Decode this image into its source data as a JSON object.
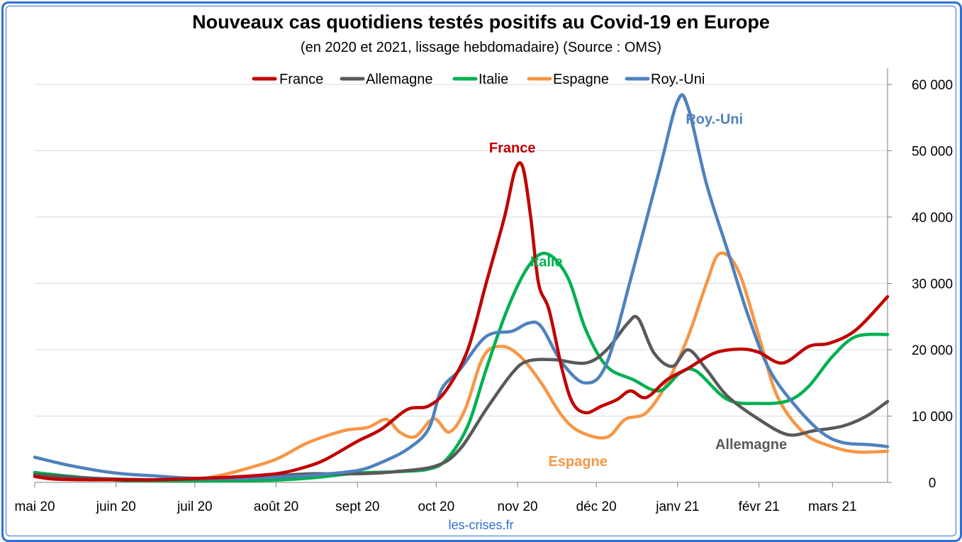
{
  "header": {
    "title": "Nouveaux cas quotidiens testés positifs au Covid-19 en Europe",
    "subtitle": "(en 2020 et 2021, lissage hebdomadaire) (Source : OMS)"
  },
  "footer": {
    "source": "les-crises.fr"
  },
  "chart_data": {
    "type": "line",
    "title": "Nouveaux cas quotidiens testés positifs au Covid-19 en Europe",
    "subtitle": "(en 2020 et 2021, lissage hebdomadaire) (Source : OMS)",
    "x_type": "date",
    "xlim": [
      "2020-05-01",
      "2021-03-22"
    ],
    "ylim": [
      0,
      60000
    ],
    "y_axis_side": "right",
    "grid": true,
    "legend_position": "top",
    "x_ticks": [
      {
        "date": "2020-05-01",
        "label": "mai 20"
      },
      {
        "date": "2020-06-01",
        "label": "juin 20"
      },
      {
        "date": "2020-07-01",
        "label": "juil 20"
      },
      {
        "date": "2020-08-01",
        "label": "août 20"
      },
      {
        "date": "2020-09-01",
        "label": "sept 20"
      },
      {
        "date": "2020-10-01",
        "label": "oct 20"
      },
      {
        "date": "2020-11-01",
        "label": "nov 20"
      },
      {
        "date": "2020-12-01",
        "label": "déc 20"
      },
      {
        "date": "2021-01-01",
        "label": "janv 21"
      },
      {
        "date": "2021-02-01",
        "label": "févr 21"
      },
      {
        "date": "2021-03-01",
        "label": "mars 21"
      }
    ],
    "y_ticks": [
      {
        "value": 0,
        "label": "0"
      },
      {
        "value": 10000,
        "label": "10 000"
      },
      {
        "value": 20000,
        "label": "20 000"
      },
      {
        "value": 30000,
        "label": "30 000"
      },
      {
        "value": 40000,
        "label": "40 000"
      },
      {
        "value": 50000,
        "label": "50 000"
      },
      {
        "value": 60000,
        "label": "60 000"
      }
    ],
    "series": [
      {
        "name": "France",
        "color": "#c00000",
        "annotation": {
          "text": "France",
          "date": "2020-10-30",
          "value": 50500
        },
        "points": [
          [
            "2020-05-01",
            900
          ],
          [
            "2020-05-08",
            500
          ],
          [
            "2020-05-20",
            400
          ],
          [
            "2020-06-01",
            400
          ],
          [
            "2020-06-15",
            400
          ],
          [
            "2020-07-01",
            600
          ],
          [
            "2020-07-15",
            800
          ],
          [
            "2020-08-01",
            1300
          ],
          [
            "2020-08-12",
            2300
          ],
          [
            "2020-08-20",
            3500
          ],
          [
            "2020-09-01",
            6200
          ],
          [
            "2020-09-10",
            8000
          ],
          [
            "2020-09-20",
            11000
          ],
          [
            "2020-09-28",
            11500
          ],
          [
            "2020-10-05",
            14000
          ],
          [
            "2020-10-13",
            20000
          ],
          [
            "2020-10-20",
            30000
          ],
          [
            "2020-10-27",
            40000
          ],
          [
            "2020-10-31",
            47000
          ],
          [
            "2020-11-03",
            47500
          ],
          [
            "2020-11-06",
            40000
          ],
          [
            "2020-11-09",
            30000
          ],
          [
            "2020-11-13",
            26000
          ],
          [
            "2020-11-18",
            17000
          ],
          [
            "2020-11-22",
            12000
          ],
          [
            "2020-11-27",
            10500
          ],
          [
            "2020-12-03",
            11500
          ],
          [
            "2020-12-09",
            12500
          ],
          [
            "2020-12-14",
            13800
          ],
          [
            "2020-12-20",
            12800
          ],
          [
            "2020-12-28",
            15500
          ],
          [
            "2021-01-05",
            17200
          ],
          [
            "2021-01-15",
            19500
          ],
          [
            "2021-01-25",
            20100
          ],
          [
            "2021-02-01",
            19600
          ],
          [
            "2021-02-10",
            18000
          ],
          [
            "2021-02-20",
            20500
          ],
          [
            "2021-02-28",
            21000
          ],
          [
            "2021-03-10",
            23000
          ],
          [
            "2021-03-22",
            28000
          ]
        ]
      },
      {
        "name": "Allemagne",
        "color": "#595959",
        "annotation": {
          "text": "Allemagne",
          "date": "2021-01-29",
          "value": 5800
        },
        "points": [
          [
            "2020-05-01",
            1200
          ],
          [
            "2020-05-15",
            800
          ],
          [
            "2020-06-01",
            500
          ],
          [
            "2020-06-15",
            400
          ],
          [
            "2020-07-01",
            500
          ],
          [
            "2020-07-15",
            600
          ],
          [
            "2020-08-01",
            1000
          ],
          [
            "2020-08-15",
            1300
          ],
          [
            "2020-09-01",
            1300
          ],
          [
            "2020-09-15",
            1600
          ],
          [
            "2020-10-01",
            2500
          ],
          [
            "2020-10-10",
            5000
          ],
          [
            "2020-10-20",
            11000
          ],
          [
            "2020-10-30",
            16500
          ],
          [
            "2020-11-05",
            18300
          ],
          [
            "2020-11-15",
            18500
          ],
          [
            "2020-11-27",
            18000
          ],
          [
            "2020-12-05",
            20000
          ],
          [
            "2020-12-13",
            24000
          ],
          [
            "2020-12-17",
            24700
          ],
          [
            "2020-12-23",
            19500
          ],
          [
            "2020-12-30",
            17500
          ],
          [
            "2021-01-05",
            20000
          ],
          [
            "2021-01-12",
            17000
          ],
          [
            "2021-01-20",
            13000
          ],
          [
            "2021-02-01",
            9500
          ],
          [
            "2021-02-12",
            7200
          ],
          [
            "2021-02-22",
            7800
          ],
          [
            "2021-03-05",
            8500
          ],
          [
            "2021-03-14",
            10000
          ],
          [
            "2021-03-22",
            12200
          ]
        ]
      },
      {
        "name": "Italie",
        "color": "#00b050",
        "annotation": {
          "text": "Italie",
          "date": "2020-11-12",
          "value": 33300
        },
        "points": [
          [
            "2020-05-01",
            1500
          ],
          [
            "2020-05-15",
            900
          ],
          [
            "2020-06-01",
            350
          ],
          [
            "2020-06-15",
            250
          ],
          [
            "2020-07-01",
            200
          ],
          [
            "2020-07-15",
            250
          ],
          [
            "2020-08-01",
            350
          ],
          [
            "2020-08-15",
            700
          ],
          [
            "2020-09-01",
            1400
          ],
          [
            "2020-09-15",
            1600
          ],
          [
            "2020-09-28",
            2000
          ],
          [
            "2020-10-05",
            3500
          ],
          [
            "2020-10-13",
            8500
          ],
          [
            "2020-10-20",
            17000
          ],
          [
            "2020-10-28",
            26000
          ],
          [
            "2020-11-05",
            32500
          ],
          [
            "2020-11-12",
            34500
          ],
          [
            "2020-11-20",
            31000
          ],
          [
            "2020-11-27",
            23000
          ],
          [
            "2020-12-05",
            17500
          ],
          [
            "2020-12-15",
            15500
          ],
          [
            "2020-12-25",
            13800
          ],
          [
            "2021-01-02",
            16500
          ],
          [
            "2021-01-08",
            16800
          ],
          [
            "2021-01-20",
            12500
          ],
          [
            "2021-02-01",
            11900
          ],
          [
            "2021-02-12",
            12300
          ],
          [
            "2021-02-20",
            14500
          ],
          [
            "2021-03-01",
            19000
          ],
          [
            "2021-03-10",
            22000
          ],
          [
            "2021-03-22",
            22300
          ]
        ]
      },
      {
        "name": "Espagne",
        "color": "#f79646",
        "annotation": {
          "text": "Espagne",
          "date": "2020-11-24",
          "value": 3200
        },
        "points": [
          [
            "2020-05-01",
            1500
          ],
          [
            "2020-05-10",
            800
          ],
          [
            "2020-05-25",
            500
          ],
          [
            "2020-06-15",
            400
          ],
          [
            "2020-07-01",
            500
          ],
          [
            "2020-07-10",
            1000
          ],
          [
            "2020-07-20",
            2000
          ],
          [
            "2020-08-01",
            3500
          ],
          [
            "2020-08-12",
            5800
          ],
          [
            "2020-08-20",
            7000
          ],
          [
            "2020-08-28",
            7900
          ],
          [
            "2020-09-05",
            8300
          ],
          [
            "2020-09-12",
            9500
          ],
          [
            "2020-09-17",
            7600
          ],
          [
            "2020-09-23",
            6900
          ],
          [
            "2020-09-30",
            9600
          ],
          [
            "2020-10-06",
            7600
          ],
          [
            "2020-10-12",
            11000
          ],
          [
            "2020-10-19",
            19000
          ],
          [
            "2020-10-26",
            20500
          ],
          [
            "2020-11-02",
            19000
          ],
          [
            "2020-11-10",
            15000
          ],
          [
            "2020-11-18",
            10000
          ],
          [
            "2020-11-25",
            7600
          ],
          [
            "2020-12-05",
            6800
          ],
          [
            "2020-12-12",
            9500
          ],
          [
            "2020-12-20",
            10500
          ],
          [
            "2020-12-28",
            15000
          ],
          [
            "2021-01-05",
            22000
          ],
          [
            "2021-01-12",
            30000
          ],
          [
            "2021-01-17",
            34500
          ],
          [
            "2021-01-24",
            32000
          ],
          [
            "2021-02-01",
            22000
          ],
          [
            "2021-02-08",
            13000
          ],
          [
            "2021-02-18",
            7500
          ],
          [
            "2021-02-28",
            5500
          ],
          [
            "2021-03-10",
            4600
          ],
          [
            "2021-03-22",
            4700
          ]
        ]
      },
      {
        "name": "Roy.-Uni",
        "color": "#4f81bd",
        "annotation": {
          "text": "Roy.-Uni",
          "date": "2021-01-15",
          "value": 54800
        },
        "points": [
          [
            "2020-05-01",
            3800
          ],
          [
            "2020-05-15",
            2500
          ],
          [
            "2020-06-01",
            1400
          ],
          [
            "2020-06-15",
            1000
          ],
          [
            "2020-07-01",
            600
          ],
          [
            "2020-07-15",
            600
          ],
          [
            "2020-08-01",
            800
          ],
          [
            "2020-08-15",
            1100
          ],
          [
            "2020-09-01",
            1800
          ],
          [
            "2020-09-10",
            3000
          ],
          [
            "2020-09-20",
            5000
          ],
          [
            "2020-09-28",
            8000
          ],
          [
            "2020-10-03",
            14000
          ],
          [
            "2020-10-10",
            17000
          ],
          [
            "2020-10-20",
            22000
          ],
          [
            "2020-10-30",
            22800
          ],
          [
            "2020-11-05",
            24000
          ],
          [
            "2020-11-10",
            23500
          ],
          [
            "2020-11-18",
            18000
          ],
          [
            "2020-11-27",
            15000
          ],
          [
            "2020-12-05",
            18000
          ],
          [
            "2020-12-15",
            32000
          ],
          [
            "2020-12-25",
            47000
          ],
          [
            "2021-01-01",
            57500
          ],
          [
            "2021-01-05",
            56500
          ],
          [
            "2021-01-12",
            45000
          ],
          [
            "2021-01-20",
            35000
          ],
          [
            "2021-01-28",
            25000
          ],
          [
            "2021-02-05",
            17000
          ],
          [
            "2021-02-15",
            11500
          ],
          [
            "2021-02-25",
            7500
          ],
          [
            "2021-03-05",
            6000
          ],
          [
            "2021-03-15",
            5700
          ],
          [
            "2021-03-22",
            5400
          ]
        ]
      }
    ]
  }
}
